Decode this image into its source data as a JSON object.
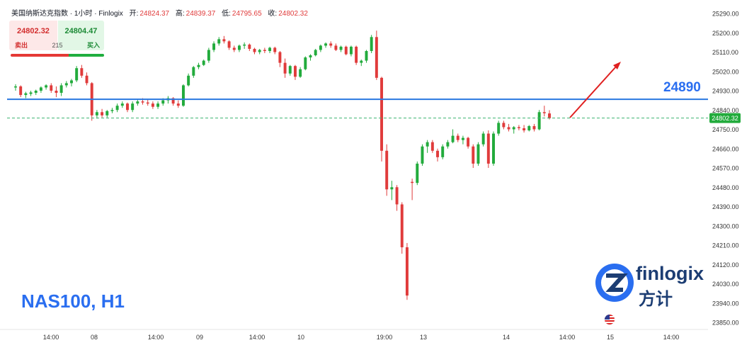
{
  "header": {
    "title": "美国纳斯达克指数 · 1小时 · Finlogix",
    "open_label": "开:",
    "open": "24824.37",
    "high_label": "高:",
    "high": "24839.37",
    "low_label": "低:",
    "low": "24795.65",
    "close_label": "收:",
    "close": "24802.32"
  },
  "trade_panel": {
    "sell_price": "24802.32",
    "buy_price": "24804.47",
    "sell_label": "卖出",
    "buy_label": "买入",
    "spread": "215"
  },
  "symbol_label": "NAS100, H1",
  "level_label": "24890",
  "logo": {
    "text": "finlogix",
    "cn": "方计",
    "mark": "Z"
  },
  "flag_icon": "us-flag-icon",
  "colors": {
    "up": "#22ab3c",
    "down": "#e03b3b",
    "level_line": "#2a78e0",
    "price_line": "#3cb371",
    "arrow": "#e02020",
    "logo": "#1c3d73",
    "label_blue": "#2a6ef0"
  },
  "chart_data": {
    "type": "candlestick",
    "title": "美国纳斯达克指数 · 1小时 · Finlogix",
    "ylim": [
      23820,
      25310
    ],
    "y_ticks": [
      25290,
      25200,
      25110,
      25020,
      24930,
      24840,
      24750,
      24660,
      24570,
      24480,
      24390,
      24300,
      24210,
      24120,
      24030,
      23940,
      23850
    ],
    "x_ticks": [
      "14:00",
      "08",
      "14:00",
      "09",
      "14:00",
      "10",
      "19:00",
      "13",
      "14",
      "14:00",
      "15",
      "14:00"
    ],
    "horizontal_level": 24890,
    "current_price": 24802.32,
    "current_price_label": "24802.32",
    "candles": [
      {
        "o": 24945,
        "h": 24960,
        "l": 24930,
        "c": 24950
      },
      {
        "o": 24950,
        "h": 24955,
        "l": 24900,
        "c": 24910
      },
      {
        "o": 24910,
        "h": 24925,
        "l": 24895,
        "c": 24918
      },
      {
        "o": 24915,
        "h": 24930,
        "l": 24905,
        "c": 24922
      },
      {
        "o": 24920,
        "h": 24935,
        "l": 24910,
        "c": 24930
      },
      {
        "o": 24930,
        "h": 24950,
        "l": 24920,
        "c": 24945
      },
      {
        "o": 24945,
        "h": 24960,
        "l": 24935,
        "c": 24955
      },
      {
        "o": 24955,
        "h": 24965,
        "l": 24920,
        "c": 24930
      },
      {
        "o": 24930,
        "h": 24950,
        "l": 24900,
        "c": 24920
      },
      {
        "o": 24920,
        "h": 24965,
        "l": 24905,
        "c": 24955
      },
      {
        "o": 24955,
        "h": 24975,
        "l": 24945,
        "c": 24965
      },
      {
        "o": 24965,
        "h": 24985,
        "l": 24950,
        "c": 24978
      },
      {
        "o": 24978,
        "h": 25045,
        "l": 24970,
        "c": 25035
      },
      {
        "o": 25035,
        "h": 25050,
        "l": 24990,
        "c": 25000
      },
      {
        "o": 25000,
        "h": 25015,
        "l": 24955,
        "c": 24965
      },
      {
        "o": 24965,
        "h": 24970,
        "l": 24790,
        "c": 24815
      },
      {
        "o": 24815,
        "h": 24840,
        "l": 24800,
        "c": 24830
      },
      {
        "o": 24830,
        "h": 24845,
        "l": 24805,
        "c": 24815
      },
      {
        "o": 24815,
        "h": 24840,
        "l": 24805,
        "c": 24835
      },
      {
        "o": 24835,
        "h": 24850,
        "l": 24825,
        "c": 24840
      },
      {
        "o": 24840,
        "h": 24870,
        "l": 24830,
        "c": 24860
      },
      {
        "o": 24860,
        "h": 24880,
        "l": 24850,
        "c": 24870
      },
      {
        "o": 24870,
        "h": 24875,
        "l": 24830,
        "c": 24840
      },
      {
        "o": 24840,
        "h": 24880,
        "l": 24830,
        "c": 24870
      },
      {
        "o": 24870,
        "h": 24890,
        "l": 24860,
        "c": 24880
      },
      {
        "o": 24880,
        "h": 24895,
        "l": 24865,
        "c": 24875
      },
      {
        "o": 24875,
        "h": 24890,
        "l": 24860,
        "c": 24870
      },
      {
        "o": 24870,
        "h": 24880,
        "l": 24845,
        "c": 24855
      },
      {
        "o": 24855,
        "h": 24880,
        "l": 24845,
        "c": 24870
      },
      {
        "o": 24870,
        "h": 24895,
        "l": 24860,
        "c": 24885
      },
      {
        "o": 24885,
        "h": 24905,
        "l": 24870,
        "c": 24895
      },
      {
        "o": 24895,
        "h": 24900,
        "l": 24860,
        "c": 24870
      },
      {
        "o": 24870,
        "h": 24885,
        "l": 24850,
        "c": 24860
      },
      {
        "o": 24860,
        "h": 24960,
        "l": 24855,
        "c": 24955
      },
      {
        "o": 24955,
        "h": 25010,
        "l": 24950,
        "c": 25000
      },
      {
        "o": 25000,
        "h": 25045,
        "l": 24990,
        "c": 25040
      },
      {
        "o": 25040,
        "h": 25060,
        "l": 25030,
        "c": 25050
      },
      {
        "o": 25050,
        "h": 25075,
        "l": 25045,
        "c": 25070
      },
      {
        "o": 25070,
        "h": 25130,
        "l": 25060,
        "c": 25120
      },
      {
        "o": 25120,
        "h": 25160,
        "l": 25110,
        "c": 25150
      },
      {
        "o": 25150,
        "h": 25180,
        "l": 25140,
        "c": 25170
      },
      {
        "o": 25170,
        "h": 25185,
        "l": 25150,
        "c": 25160
      },
      {
        "o": 25160,
        "h": 25165,
        "l": 25120,
        "c": 25130
      },
      {
        "o": 25130,
        "h": 25140,
        "l": 25110,
        "c": 25120
      },
      {
        "o": 25120,
        "h": 25145,
        "l": 25110,
        "c": 25140
      },
      {
        "o": 25140,
        "h": 25155,
        "l": 25125,
        "c": 25145
      },
      {
        "o": 25145,
        "h": 25150,
        "l": 25115,
        "c": 25125
      },
      {
        "o": 25125,
        "h": 25130,
        "l": 25100,
        "c": 25110
      },
      {
        "o": 25110,
        "h": 25125,
        "l": 25100,
        "c": 25120
      },
      {
        "o": 25120,
        "h": 25130,
        "l": 25105,
        "c": 25115
      },
      {
        "o": 25115,
        "h": 25135,
        "l": 25105,
        "c": 25130
      },
      {
        "o": 25130,
        "h": 25135,
        "l": 25100,
        "c": 25110
      },
      {
        "o": 25110,
        "h": 25115,
        "l": 25040,
        "c": 25060
      },
      {
        "o": 25060,
        "h": 25080,
        "l": 24990,
        "c": 25010
      },
      {
        "o": 25010,
        "h": 25050,
        "l": 25000,
        "c": 25045
      },
      {
        "o": 25045,
        "h": 25050,
        "l": 24980,
        "c": 24995
      },
      {
        "o": 24995,
        "h": 25040,
        "l": 24990,
        "c": 25030
      },
      {
        "o": 25030,
        "h": 25090,
        "l": 25025,
        "c": 25085
      },
      {
        "o": 25085,
        "h": 25100,
        "l": 25070,
        "c": 25095
      },
      {
        "o": 25095,
        "h": 25125,
        "l": 25090,
        "c": 25120
      },
      {
        "o": 25120,
        "h": 25145,
        "l": 25110,
        "c": 25140
      },
      {
        "o": 25140,
        "h": 25155,
        "l": 25130,
        "c": 25150
      },
      {
        "o": 25150,
        "h": 25160,
        "l": 25130,
        "c": 25140
      },
      {
        "o": 25140,
        "h": 25150,
        "l": 25115,
        "c": 25120
      },
      {
        "o": 25120,
        "h": 25140,
        "l": 25110,
        "c": 25135
      },
      {
        "o": 25135,
        "h": 25140,
        "l": 25095,
        "c": 25100
      },
      {
        "o": 25100,
        "h": 25140,
        "l": 25090,
        "c": 25135
      },
      {
        "o": 25135,
        "h": 25140,
        "l": 25050,
        "c": 25060
      },
      {
        "o": 25060,
        "h": 25075,
        "l": 25045,
        "c": 25070
      },
      {
        "o": 25070,
        "h": 25120,
        "l": 25060,
        "c": 25115
      },
      {
        "o": 25115,
        "h": 25190,
        "l": 25105,
        "c": 25180
      },
      {
        "o": 25180,
        "h": 25210,
        "l": 24980,
        "c": 24990
      },
      {
        "o": 24990,
        "h": 24995,
        "l": 24600,
        "c": 24650
      },
      {
        "o": 24650,
        "h": 24680,
        "l": 24440,
        "c": 24470
      },
      {
        "o": 24470,
        "h": 24510,
        "l": 24420,
        "c": 24480
      },
      {
        "o": 24480,
        "h": 24490,
        "l": 24370,
        "c": 24400
      },
      {
        "o": 24400,
        "h": 24410,
        "l": 24170,
        "c": 24200
      },
      {
        "o": 24200,
        "h": 24220,
        "l": 23955,
        "c": 23975
      },
      {
        "o": 24505,
        "h": 24520,
        "l": 24420,
        "c": 24500
      },
      {
        "o": 24500,
        "h": 24600,
        "l": 24490,
        "c": 24590
      },
      {
        "o": 24590,
        "h": 24680,
        "l": 24580,
        "c": 24670
      },
      {
        "o": 24670,
        "h": 24700,
        "l": 24640,
        "c": 24690
      },
      {
        "o": 24690,
        "h": 24700,
        "l": 24640,
        "c": 24650
      },
      {
        "o": 24650,
        "h": 24660,
        "l": 24600,
        "c": 24620
      },
      {
        "o": 24620,
        "h": 24680,
        "l": 24610,
        "c": 24670
      },
      {
        "o": 24670,
        "h": 24700,
        "l": 24660,
        "c": 24690
      },
      {
        "o": 24690,
        "h": 24750,
        "l": 24685,
        "c": 24720
      },
      {
        "o": 24720,
        "h": 24730,
        "l": 24690,
        "c": 24700
      },
      {
        "o": 24700,
        "h": 24720,
        "l": 24680,
        "c": 24710
      },
      {
        "o": 24710,
        "h": 24715,
        "l": 24660,
        "c": 24670
      },
      {
        "o": 24670,
        "h": 24680,
        "l": 24570,
        "c": 24590
      },
      {
        "o": 24590,
        "h": 24690,
        "l": 24580,
        "c": 24680
      },
      {
        "o": 24680,
        "h": 24740,
        "l": 24670,
        "c": 24730
      },
      {
        "o": 24730,
        "h": 24745,
        "l": 24570,
        "c": 24590
      },
      {
        "o": 24590,
        "h": 24740,
        "l": 24580,
        "c": 24730
      },
      {
        "o": 24730,
        "h": 24790,
        "l": 24720,
        "c": 24780
      },
      {
        "o": 24780,
        "h": 24790,
        "l": 24750,
        "c": 24760
      },
      {
        "o": 24760,
        "h": 24775,
        "l": 24740,
        "c": 24750
      },
      {
        "o": 24750,
        "h": 24765,
        "l": 24730,
        "c": 24760
      },
      {
        "o": 24760,
        "h": 24770,
        "l": 24745,
        "c": 24755
      },
      {
        "o": 24755,
        "h": 24770,
        "l": 24735,
        "c": 24745
      },
      {
        "o": 24745,
        "h": 24770,
        "l": 24740,
        "c": 24765
      },
      {
        "o": 24765,
        "h": 24775,
        "l": 24740,
        "c": 24750
      },
      {
        "o": 24750,
        "h": 24840,
        "l": 24745,
        "c": 24830
      },
      {
        "o": 24830,
        "h": 24860,
        "l": 24810,
        "c": 24825
      },
      {
        "o": 24824,
        "h": 24839,
        "l": 24796,
        "c": 24802
      }
    ]
  }
}
